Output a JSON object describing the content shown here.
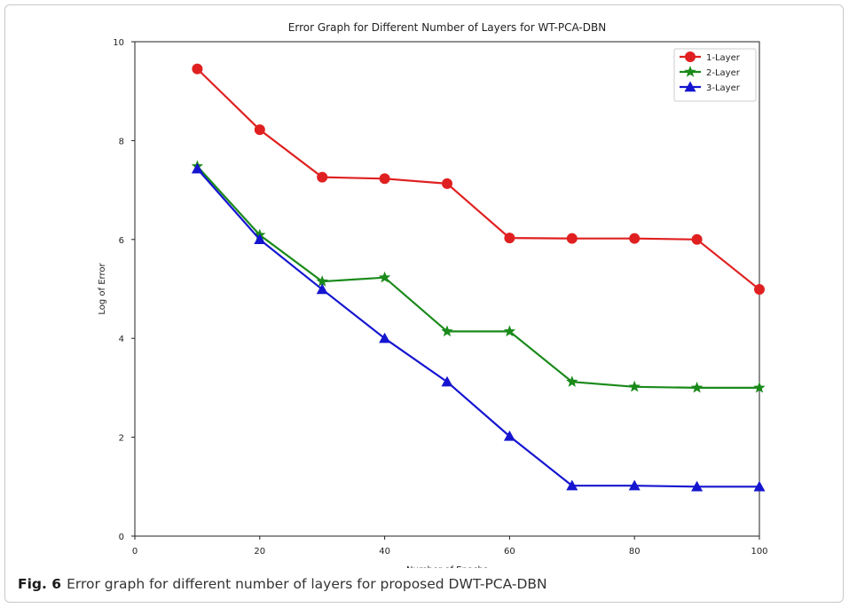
{
  "chart_data": {
    "type": "line",
    "title": "Error Graph for Different Number of Layers for WT-PCA-DBN",
    "xlabel": "Number of Epochs",
    "ylabel": "Log of Error",
    "xlim": [
      0,
      100
    ],
    "ylim": [
      0,
      10
    ],
    "xticks": [
      0,
      20,
      40,
      60,
      80,
      100
    ],
    "yticks": [
      0,
      2,
      4,
      6,
      8,
      10
    ],
    "grid": false,
    "legend_position": "top-right",
    "x": [
      10,
      20,
      30,
      40,
      50,
      60,
      70,
      80,
      90,
      100
    ],
    "series": [
      {
        "name": "1-Layer",
        "color": "#e02020",
        "marker": "circle",
        "values": [
          9.45,
          8.22,
          7.26,
          7.23,
          7.13,
          6.03,
          6.02,
          6.02,
          6.0,
          4.99
        ]
      },
      {
        "name": "2-Layer",
        "color": "#1a8a1a",
        "marker": "star",
        "values": [
          7.48,
          6.09,
          5.15,
          5.23,
          4.14,
          4.14,
          3.12,
          3.02,
          3.0,
          3.0
        ]
      },
      {
        "name": "3-Layer",
        "color": "#1515d0",
        "marker": "triangle",
        "values": [
          7.43,
          6.0,
          4.99,
          4.0,
          3.12,
          2.02,
          1.02,
          1.02,
          1.0,
          1.0
        ]
      }
    ]
  },
  "caption": {
    "label": "Fig. 6",
    "text": "Error graph for different number of layers for proposed DWT-PCA-DBN"
  }
}
